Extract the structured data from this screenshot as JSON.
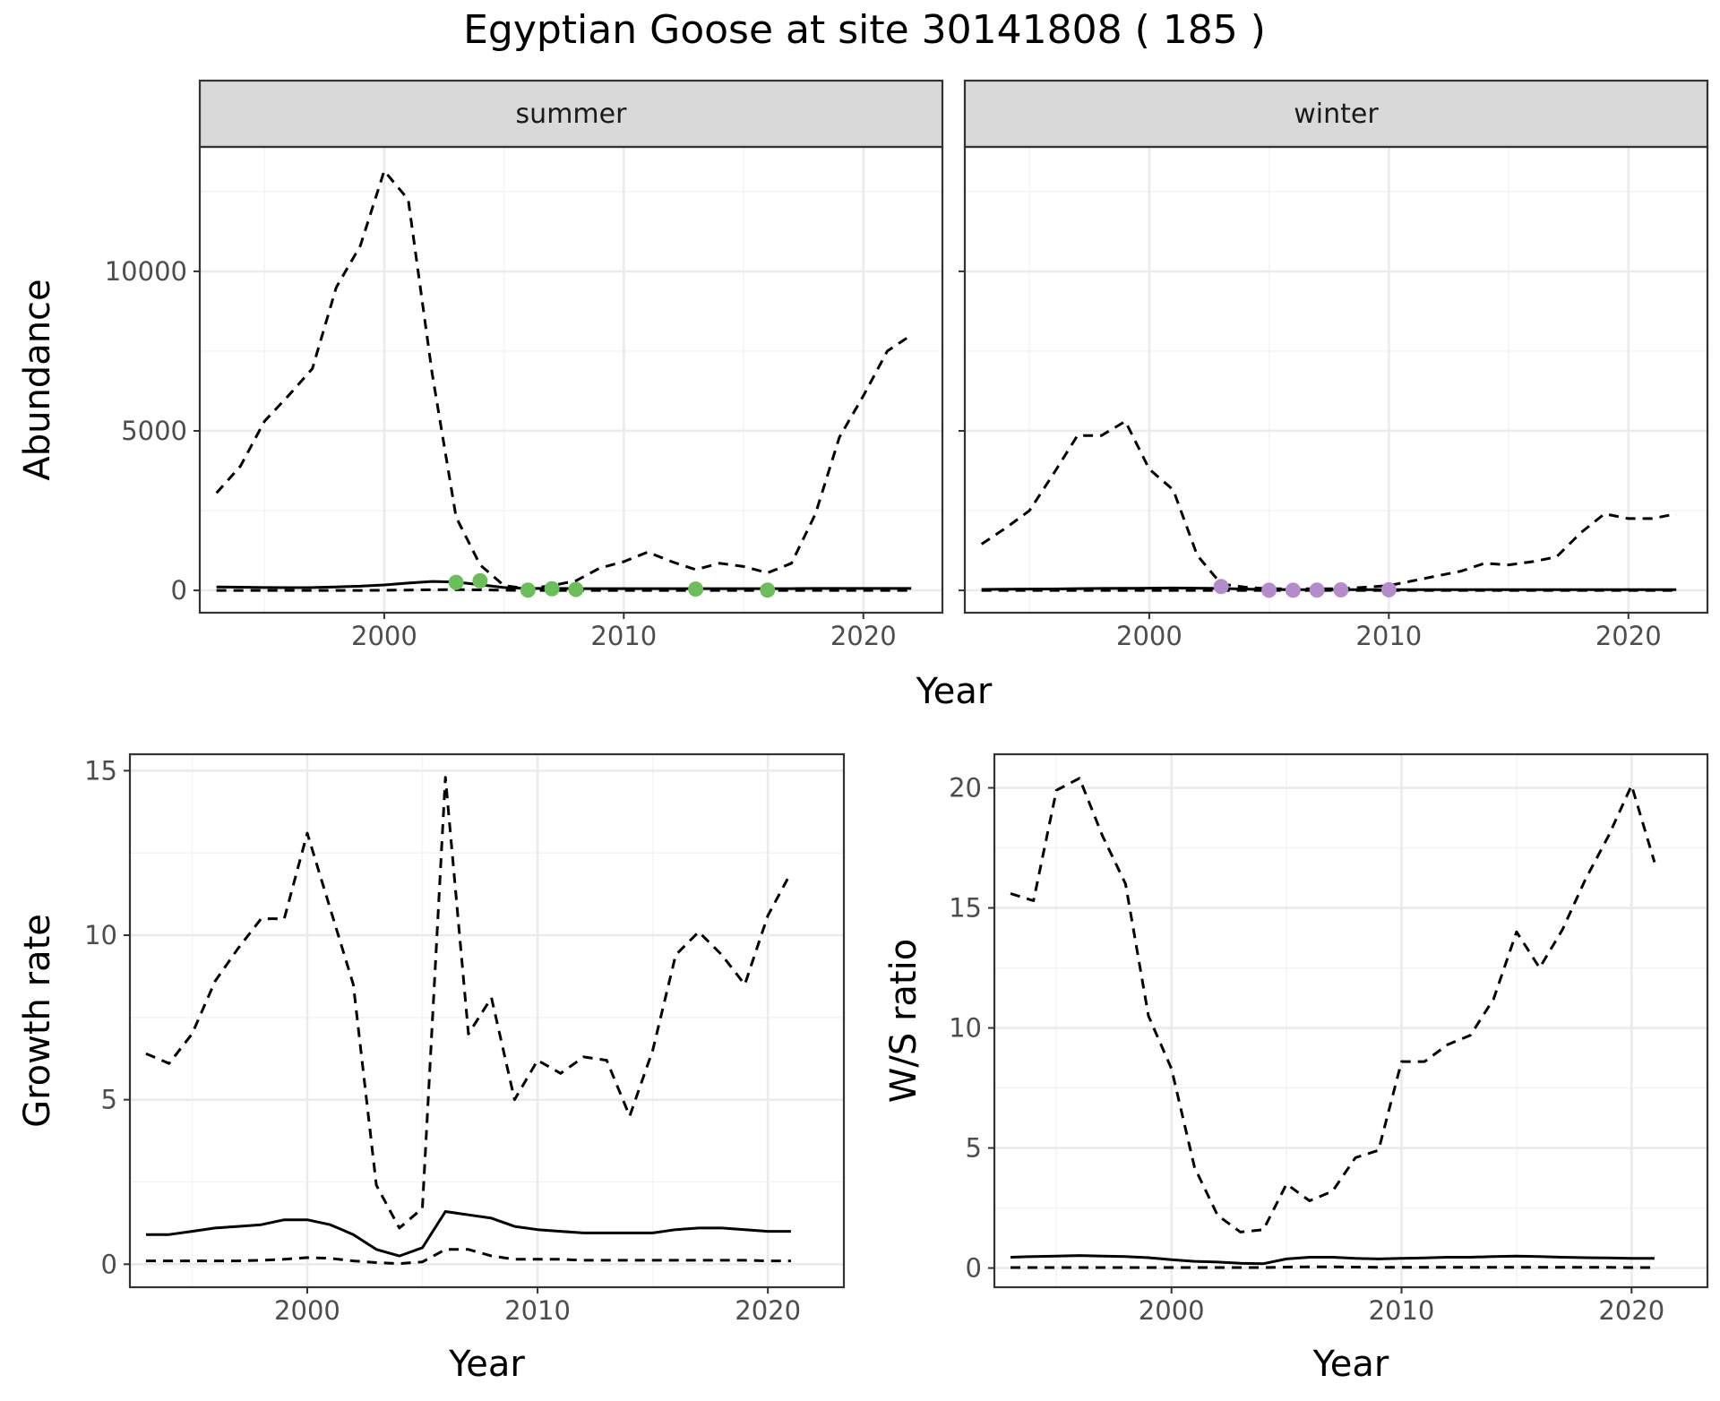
{
  "title": "Egyptian Goose at site 30141808 ( 185 )",
  "colors": {
    "summer_points": "#6cbe5a",
    "winter_points": "#b48ccc",
    "line": "#000000",
    "strip_fill": "#d9d9d9"
  },
  "chart_data": [
    {
      "type": "line",
      "facets": [
        "summer",
        "winter"
      ],
      "xlabel": "Year",
      "ylabel": "Abundance",
      "xlim": [
        1992.3,
        2023.3
      ],
      "ylim": [
        -700,
        13900
      ],
      "x_ticks": [
        2000,
        2010,
        2020
      ],
      "y_ticks": [
        0,
        5000,
        10000
      ],
      "grid": true,
      "panels": [
        {
          "facet": "summer",
          "point_color": "summer",
          "upper": {
            "x": [
              1993,
              1994,
              1995,
              1996,
              1997,
              1998,
              1999,
              2000,
              2001,
              2002,
              2003,
              2004,
              2005,
              2006,
              2007,
              2008,
              2009,
              2010,
              2011,
              2012,
              2013,
              2014,
              2015,
              2016,
              2017,
              2018,
              2019,
              2020,
              2021,
              2022
            ],
            "y": [
              3050,
              3900,
              5300,
              6100,
              6950,
              9500,
              10800,
              13150,
              12250,
              6800,
              2300,
              800,
              150,
              50,
              150,
              300,
              700,
              900,
              1200,
              900,
              650,
              850,
              750,
              550,
              850,
              2400,
              4800,
              6100,
              7500,
              8000
            ]
          },
          "estimate": {
            "x": [
              1993,
              1994,
              1995,
              1996,
              1997,
              1998,
              1999,
              2000,
              2001,
              2002,
              2003,
              2004,
              2005,
              2006,
              2007,
              2008,
              2009,
              2010,
              2011,
              2012,
              2013,
              2014,
              2015,
              2016,
              2017,
              2018,
              2019,
              2020,
              2021,
              2022
            ],
            "y": [
              110,
              100,
              90,
              85,
              90,
              110,
              130,
              170,
              230,
              280,
              260,
              180,
              90,
              60,
              60,
              55,
              55,
              55,
              55,
              55,
              55,
              55,
              55,
              55,
              55,
              60,
              60,
              60,
              60,
              60
            ]
          },
          "lower": {
            "x": [
              1993,
              1994,
              1995,
              1996,
              1997,
              1998,
              1999,
              2000,
              2001,
              2002,
              2003,
              2004,
              2005,
              2006,
              2007,
              2008,
              2009,
              2010,
              2011,
              2012,
              2013,
              2014,
              2015,
              2016,
              2017,
              2018,
              2019,
              2020,
              2021,
              2022
            ],
            "y": [
              0,
              0,
              0,
              0,
              0,
              0,
              0,
              5,
              10,
              20,
              25,
              15,
              5,
              0,
              0,
              0,
              0,
              0,
              0,
              0,
              0,
              0,
              0,
              0,
              0,
              0,
              0,
              0,
              0,
              0
            ]
          },
          "points": {
            "x": [
              2003,
              2004,
              2006,
              2007,
              2008,
              2013,
              2016
            ],
            "y": [
              250,
              300,
              10,
              50,
              30,
              40,
              10
            ]
          }
        },
        {
          "facet": "winter",
          "point_color": "winter",
          "upper": {
            "x": [
              1993,
              1994,
              1995,
              1996,
              1997,
              1998,
              1999,
              2000,
              2001,
              2002,
              2003,
              2004,
              2005,
              2006,
              2007,
              2008,
              2009,
              2010,
              2011,
              2012,
              2013,
              2014,
              2015,
              2016,
              2017,
              2018,
              2019,
              2020,
              2021,
              2022
            ],
            "y": [
              1450,
              1950,
              2500,
              3650,
              4850,
              4850,
              5300,
              3800,
              3150,
              1100,
              200,
              100,
              50,
              50,
              50,
              50,
              100,
              150,
              300,
              450,
              600,
              850,
              800,
              900,
              1050,
              1800,
              2400,
              2250,
              2250,
              2400
            ]
          },
          "estimate": {
            "x": [
              1993,
              1994,
              1995,
              1996,
              1997,
              1998,
              1999,
              2000,
              2001,
              2002,
              2003,
              2004,
              2005,
              2006,
              2007,
              2008,
              2009,
              2010,
              2011,
              2012,
              2013,
              2014,
              2015,
              2016,
              2017,
              2018,
              2019,
              2020,
              2021,
              2022
            ],
            "y": [
              30,
              35,
              40,
              45,
              55,
              60,
              65,
              70,
              75,
              70,
              60,
              40,
              30,
              25,
              25,
              25,
              25,
              25,
              25,
              25,
              25,
              25,
              25,
              25,
              25,
              25,
              25,
              25,
              25,
              25
            ]
          },
          "lower": {
            "x": [
              1993,
              1994,
              1995,
              1996,
              1997,
              1998,
              1999,
              2000,
              2001,
              2002,
              2003,
              2004,
              2005,
              2006,
              2007,
              2008,
              2009,
              2010,
              2011,
              2012,
              2013,
              2014,
              2015,
              2016,
              2017,
              2018,
              2019,
              2020,
              2021,
              2022
            ],
            "y": [
              0,
              0,
              0,
              0,
              0,
              0,
              0,
              0,
              0,
              0,
              0,
              0,
              0,
              0,
              0,
              0,
              0,
              0,
              0,
              0,
              0,
              0,
              0,
              0,
              0,
              0,
              0,
              0,
              0,
              0
            ]
          },
          "points": {
            "x": [
              2003,
              2005,
              2006,
              2007,
              2008,
              2010
            ],
            "y": [
              120,
              5,
              5,
              10,
              15,
              20
            ]
          }
        }
      ]
    },
    {
      "type": "line",
      "xlabel": "Year",
      "ylabel": "Growth rate",
      "xlim": [
        1992.3,
        2023.3
      ],
      "ylim": [
        -0.7,
        15.5
      ],
      "x_ticks": [
        2000,
        2010,
        2020
      ],
      "y_ticks": [
        0,
        5,
        10,
        15
      ],
      "grid": true,
      "upper": {
        "x": [
          1993,
          1994,
          1995,
          1996,
          1997,
          1998,
          1999,
          2000,
          2001,
          2002,
          2003,
          2004,
          2005,
          2006,
          2007,
          2008,
          2009,
          2010,
          2011,
          2012,
          2013,
          2014,
          2015,
          2016,
          2017,
          2018,
          2019,
          2020,
          2021
        ],
        "y": [
          6.4,
          6.1,
          7.0,
          8.6,
          9.6,
          10.5,
          10.5,
          13.1,
          10.8,
          8.5,
          2.4,
          1.1,
          1.7,
          14.8,
          7.0,
          8.1,
          5.0,
          6.2,
          5.8,
          6.3,
          6.2,
          4.5,
          6.5,
          9.4,
          10.1,
          9.4,
          8.5,
          10.6,
          11.9
        ]
      },
      "estimate": {
        "x": [
          1993,
          1994,
          1995,
          1996,
          1997,
          1998,
          1999,
          2000,
          2001,
          2002,
          2003,
          2004,
          2005,
          2006,
          2007,
          2008,
          2009,
          2010,
          2011,
          2012,
          2013,
          2014,
          2015,
          2016,
          2017,
          2018,
          2019,
          2020,
          2021
        ],
        "y": [
          0.9,
          0.9,
          1.0,
          1.1,
          1.15,
          1.2,
          1.35,
          1.35,
          1.2,
          0.9,
          0.45,
          0.25,
          0.5,
          1.6,
          1.5,
          1.4,
          1.15,
          1.05,
          1.0,
          0.95,
          0.95,
          0.95,
          0.95,
          1.05,
          1.1,
          1.1,
          1.05,
          1.0,
          1.0
        ]
      },
      "lower": {
        "x": [
          1993,
          1994,
          1995,
          1996,
          1997,
          1998,
          1999,
          2000,
          2001,
          2002,
          2003,
          2004,
          2005,
          2006,
          2007,
          2008,
          2009,
          2010,
          2011,
          2012,
          2013,
          2014,
          2015,
          2016,
          2017,
          2018,
          2019,
          2020,
          2021
        ],
        "y": [
          0.1,
          0.1,
          0.1,
          0.1,
          0.1,
          0.12,
          0.15,
          0.2,
          0.18,
          0.1,
          0.05,
          0.02,
          0.07,
          0.45,
          0.45,
          0.25,
          0.15,
          0.15,
          0.15,
          0.12,
          0.12,
          0.12,
          0.12,
          0.12,
          0.12,
          0.12,
          0.12,
          0.1,
          0.1
        ]
      }
    },
    {
      "type": "line",
      "xlabel": "Year",
      "ylabel": "W/S ratio",
      "xlim": [
        1992.3,
        2023.3
      ],
      "ylim": [
        -0.8,
        21.4
      ],
      "x_ticks": [
        2000,
        2010,
        2020
      ],
      "y_ticks": [
        0,
        5,
        10,
        15,
        20
      ],
      "grid": true,
      "upper": {
        "x": [
          1993,
          1994,
          1995,
          1996,
          1997,
          1998,
          1999,
          2000,
          2001,
          2002,
          2003,
          2004,
          2005,
          2006,
          2007,
          2008,
          2009,
          2010,
          2011,
          2012,
          2013,
          2014,
          2015,
          2016,
          2017,
          2018,
          2019,
          2020,
          2021
        ],
        "y": [
          15.6,
          15.3,
          19.9,
          20.4,
          18.0,
          16.0,
          10.5,
          8.3,
          4.2,
          2.2,
          1.5,
          1.6,
          3.5,
          2.8,
          3.2,
          4.6,
          4.9,
          8.6,
          8.6,
          9.3,
          9.7,
          11.2,
          14.0,
          12.5,
          14.1,
          16.2,
          18.0,
          20.1,
          16.9
        ]
      },
      "estimate": {
        "x": [
          1993,
          1994,
          1995,
          1996,
          1997,
          1998,
          1999,
          2000,
          2001,
          2002,
          2003,
          2004,
          2005,
          2006,
          2007,
          2008,
          2009,
          2010,
          2011,
          2012,
          2013,
          2014,
          2015,
          2016,
          2017,
          2018,
          2019,
          2020,
          2021
        ],
        "y": [
          0.45,
          0.48,
          0.5,
          0.52,
          0.5,
          0.48,
          0.43,
          0.35,
          0.28,
          0.25,
          0.2,
          0.18,
          0.38,
          0.45,
          0.45,
          0.4,
          0.38,
          0.4,
          0.42,
          0.45,
          0.45,
          0.48,
          0.5,
          0.48,
          0.45,
          0.43,
          0.42,
          0.4,
          0.4
        ]
      },
      "lower": {
        "x": [
          1993,
          1994,
          1995,
          1996,
          1997,
          1998,
          1999,
          2000,
          2001,
          2002,
          2003,
          2004,
          2005,
          2006,
          2007,
          2008,
          2009,
          2010,
          2011,
          2012,
          2013,
          2014,
          2015,
          2016,
          2017,
          2018,
          2019,
          2020,
          2021
        ],
        "y": [
          0.02,
          0.02,
          0.02,
          0.02,
          0.02,
          0.02,
          0.02,
          0.02,
          0.02,
          0.02,
          0.02,
          0.02,
          0.04,
          0.05,
          0.05,
          0.04,
          0.03,
          0.03,
          0.03,
          0.03,
          0.03,
          0.03,
          0.03,
          0.03,
          0.03,
          0.03,
          0.03,
          0.02,
          0.02
        ]
      }
    }
  ]
}
